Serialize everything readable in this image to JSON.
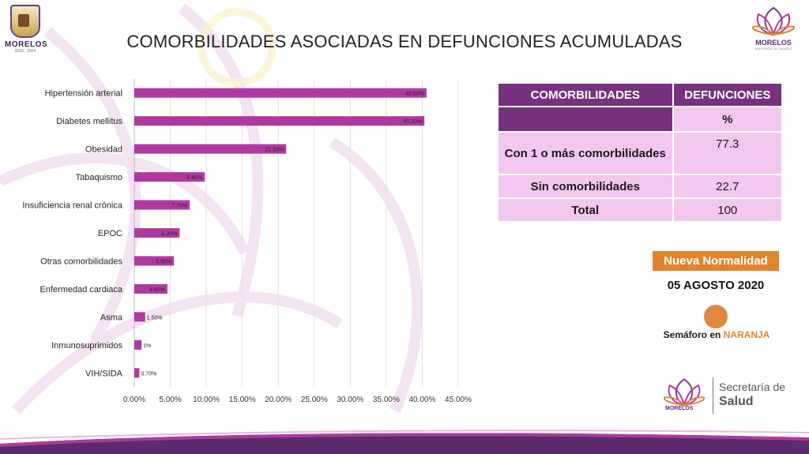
{
  "header": {
    "title": "COMORBILIDADES ASOCIADAS EN DEFUNCIONES ACUMULADAS",
    "left_logo": {
      "state": "MORELOS",
      "years": "2018 - 2024"
    },
    "right_logo": {
      "brand": "MORELOS",
      "tag": "ANFITRIÓN DEL MUNDO"
    }
  },
  "chart_data": {
    "type": "bar",
    "orientation": "horizontal",
    "categories": [
      "Hipertensión arterial",
      "Diabetes mellitus",
      "Obesidad",
      "Tabaquismo",
      "Insuficiencia renal crónica",
      "EPOC",
      "Otras comorbilidades",
      "Enfermedad cardiaca",
      "Asma",
      "Inmunosuprimidos",
      "VIH/SIDA"
    ],
    "values": [
      40.6,
      40.3,
      21.1,
      9.8,
      7.7,
      6.3,
      5.5,
      4.6,
      1.5,
      1.0,
      0.7
    ],
    "value_labels": [
      "40.60%",
      "40.30%",
      "21.10%",
      "9.80%",
      "7.70%",
      "6.30%",
      "5.50%",
      "4.60%",
      "1.50%",
      "1%",
      "0.70%"
    ],
    "xlim": [
      0,
      45
    ],
    "xticks": [
      "0.00%",
      "5.00%",
      "10.00%",
      "15.00%",
      "20.00%",
      "25.00%",
      "30.00%",
      "35.00%",
      "40.00%",
      "45.00%"
    ],
    "grid": true,
    "bar_color": "#b0399f",
    "title": "",
    "xlabel": "",
    "ylabel": ""
  },
  "table": {
    "headers": [
      "COMORBILIDADES",
      "DEFUNCIONES"
    ],
    "unit": "%",
    "rows": [
      {
        "label": "Con 1 o más comorbilidades",
        "value": "77.3"
      },
      {
        "label": "Sin comorbilidades",
        "value": "22.7"
      },
      {
        "label": "Total",
        "value": "100"
      }
    ]
  },
  "status": {
    "phase": "Nueva Normalidad",
    "date": "05 AGOSTO 2020",
    "semaforo_prefix": "Semáforo en",
    "semaforo_color_label": "NARANJA",
    "semaforo_color": "#e2873e"
  },
  "footer": {
    "brand": "MORELOS",
    "secretaria": "Secretaría de",
    "salud": "Salud"
  }
}
